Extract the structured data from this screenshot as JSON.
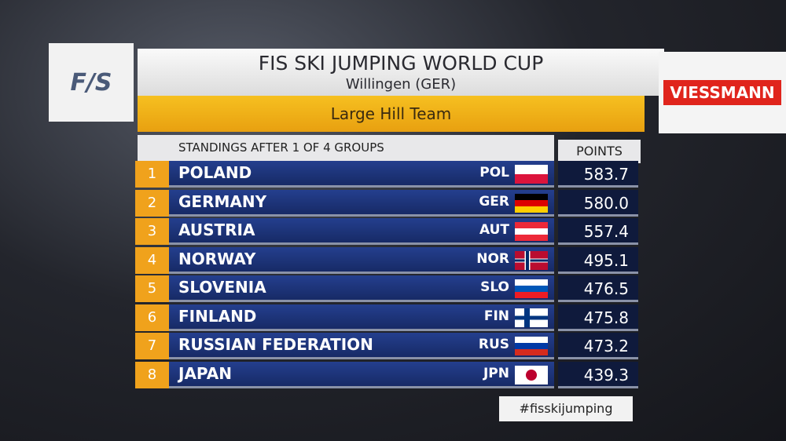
{
  "header": {
    "logo": "F/S",
    "title": "FIS SKI JUMPING WORLD CUP",
    "subtitle": "Willingen (GER)",
    "event": "Large Hill Team",
    "sponsor": "VIESSMANN"
  },
  "table": {
    "caption": "STANDINGS AFTER 1 OF 4 GROUPS",
    "points_header": "POINTS",
    "rows": [
      [
        1,
        "POLAND",
        "POL",
        "583.7"
      ],
      [
        2,
        "GERMANY",
        "GER",
        "580.0"
      ],
      [
        3,
        "AUSTRIA",
        "AUT",
        "557.4"
      ],
      [
        4,
        "NORWAY",
        "NOR",
        "495.1"
      ],
      [
        5,
        "SLOVENIA",
        "SLO",
        "476.5"
      ],
      [
        6,
        "FINLAND",
        "FIN",
        "475.8"
      ],
      [
        7,
        "RUSSIAN FEDERATION",
        "RUS",
        "473.2"
      ],
      [
        8,
        "JAPAN",
        "JPN",
        "439.3"
      ]
    ]
  },
  "hashtag": "#fisskijumping"
}
